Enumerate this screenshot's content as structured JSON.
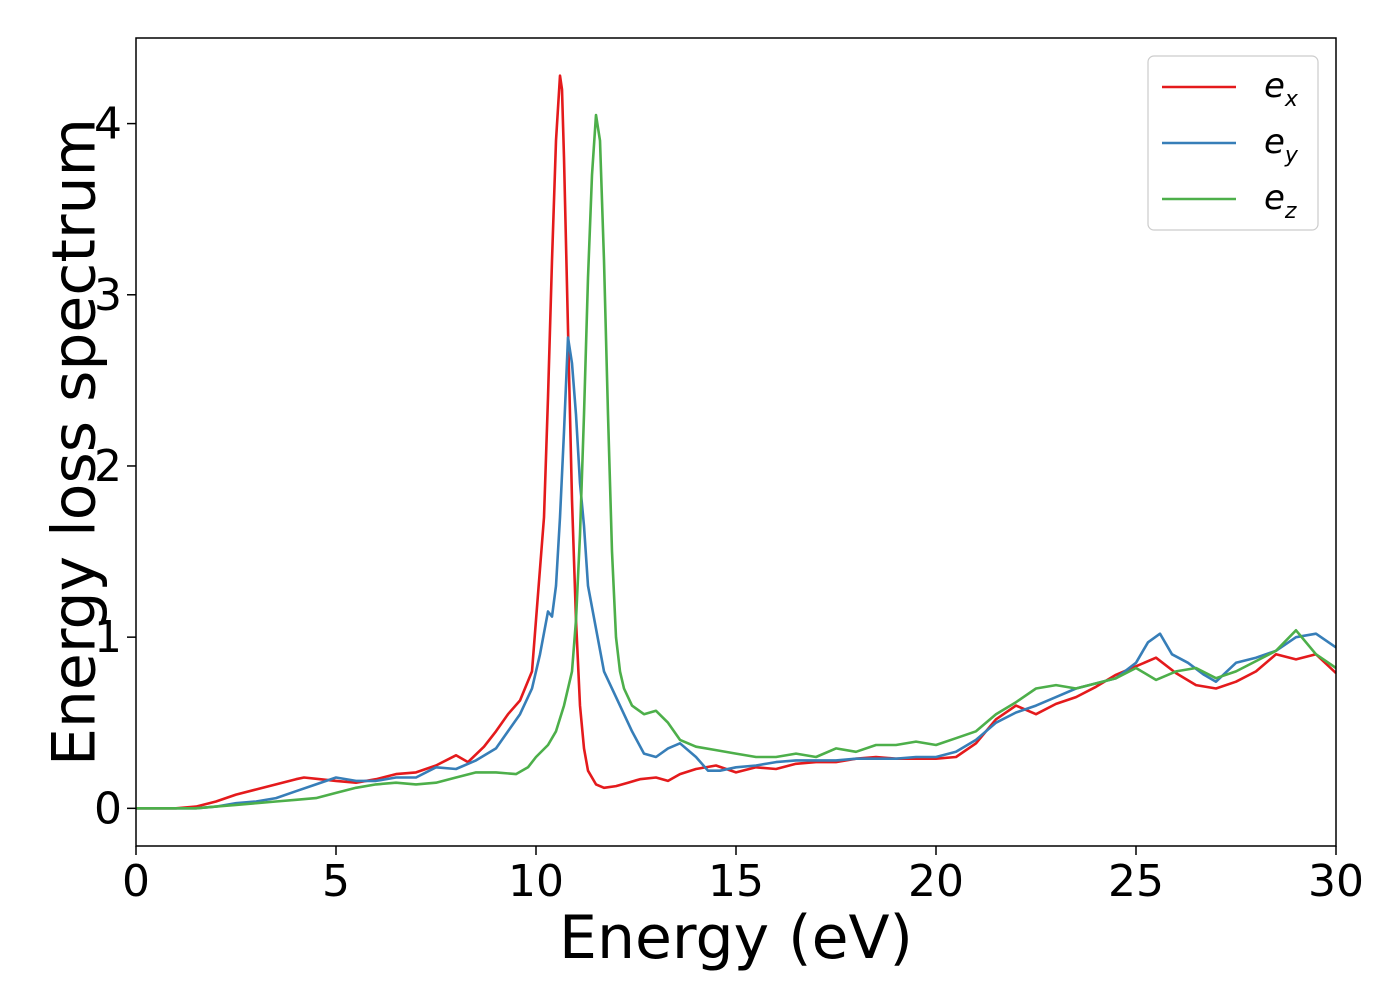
{
  "chart_data": {
    "type": "line",
    "title": "",
    "xlabel": "Energy (eV)",
    "ylabel": "Energy loss spectrum",
    "xlim": [
      0,
      30
    ],
    "ylim": [
      -0.22,
      4.5
    ],
    "xticks": [
      0,
      5,
      10,
      15,
      20,
      25,
      30
    ],
    "yticks": [
      0,
      1,
      2,
      3,
      4
    ],
    "grid": false,
    "legend_position": "top-right",
    "series": [
      {
        "name": "e_x",
        "label_base": "e",
        "label_sub": "x",
        "color": "#e41a1c",
        "x": [
          0,
          1,
          1.5,
          2,
          2.5,
          3,
          3.5,
          4,
          4.2,
          4.6,
          5,
          5.5,
          6,
          6.5,
          7,
          7.5,
          8,
          8.3,
          8.7,
          9,
          9.3,
          9.6,
          9.9,
          10,
          10.1,
          10.2,
          10.3,
          10.4,
          10.5,
          10.6,
          10.65,
          10.7,
          10.8,
          10.9,
          11,
          11.1,
          11.2,
          11.3,
          11.5,
          11.7,
          12,
          12.3,
          12.6,
          13,
          13.3,
          13.6,
          14,
          14.5,
          15,
          15.5,
          16,
          16.5,
          17,
          17.5,
          18,
          18.5,
          19,
          19.5,
          20,
          20.5,
          21,
          21.5,
          22,
          22.5,
          23,
          23.5,
          24,
          24.5,
          25,
          25.5,
          26,
          26.5,
          27,
          27.5,
          28,
          28.5,
          29,
          29.5,
          30
        ],
        "y": [
          0,
          0,
          0.01,
          0.04,
          0.08,
          0.11,
          0.14,
          0.17,
          0.18,
          0.17,
          0.16,
          0.15,
          0.17,
          0.2,
          0.21,
          0.25,
          0.31,
          0.27,
          0.36,
          0.45,
          0.55,
          0.63,
          0.8,
          1.1,
          1.4,
          1.7,
          2.4,
          3.2,
          3.9,
          4.28,
          4.2,
          3.8,
          2.8,
          1.8,
          1.1,
          0.6,
          0.35,
          0.22,
          0.14,
          0.12,
          0.13,
          0.15,
          0.17,
          0.18,
          0.16,
          0.2,
          0.23,
          0.25,
          0.21,
          0.24,
          0.23,
          0.26,
          0.27,
          0.27,
          0.29,
          0.3,
          0.29,
          0.29,
          0.29,
          0.3,
          0.38,
          0.52,
          0.6,
          0.55,
          0.61,
          0.65,
          0.71,
          0.78,
          0.83,
          0.88,
          0.79,
          0.72,
          0.7,
          0.74,
          0.8,
          0.9,
          0.87,
          0.9,
          0.79
        ]
      },
      {
        "name": "e_y",
        "label_base": "e",
        "label_sub": "y",
        "color": "#377eb8",
        "x": [
          0,
          1,
          1.5,
          2,
          2.5,
          3,
          3.5,
          4,
          4.5,
          5,
          5.5,
          6,
          6.5,
          7,
          7.5,
          8,
          8.5,
          9,
          9.3,
          9.6,
          9.9,
          10.1,
          10.3,
          10.4,
          10.5,
          10.6,
          10.7,
          10.8,
          10.9,
          11,
          11.1,
          11.2,
          11.3,
          11.5,
          11.7,
          12,
          12.2,
          12.4,
          12.7,
          13,
          13.3,
          13.6,
          14,
          14.3,
          14.6,
          15,
          15.5,
          16,
          16.5,
          17,
          17.5,
          18,
          18.5,
          19,
          19.5,
          20,
          20.5,
          21,
          21.5,
          22,
          22.5,
          23,
          23.5,
          24,
          24.5,
          25,
          25.3,
          25.6,
          25.9,
          26.3,
          26.7,
          27,
          27.5,
          28,
          28.5,
          29,
          29.5,
          30
        ],
        "y": [
          0,
          0,
          0,
          0.01,
          0.03,
          0.04,
          0.06,
          0.1,
          0.14,
          0.18,
          0.16,
          0.16,
          0.18,
          0.18,
          0.24,
          0.23,
          0.28,
          0.35,
          0.45,
          0.55,
          0.7,
          0.9,
          1.15,
          1.12,
          1.3,
          1.7,
          2.2,
          2.75,
          2.6,
          2.3,
          1.9,
          1.65,
          1.3,
          1.05,
          0.8,
          0.65,
          0.55,
          0.45,
          0.32,
          0.3,
          0.35,
          0.38,
          0.3,
          0.22,
          0.22,
          0.24,
          0.25,
          0.27,
          0.28,
          0.28,
          0.28,
          0.29,
          0.29,
          0.29,
          0.3,
          0.3,
          0.33,
          0.4,
          0.5,
          0.56,
          0.6,
          0.65,
          0.7,
          0.73,
          0.76,
          0.85,
          0.97,
          1.02,
          0.9,
          0.85,
          0.78,
          0.74,
          0.85,
          0.88,
          0.92,
          1.0,
          1.02,
          0.94
        ]
      },
      {
        "name": "e_z",
        "label_base": "e",
        "label_sub": "z",
        "color": "#4daf4a",
        "x": [
          0,
          1,
          1.5,
          2,
          2.5,
          3,
          3.5,
          4,
          4.5,
          5,
          5.5,
          6,
          6.5,
          7,
          7.5,
          8,
          8.5,
          9,
          9.5,
          9.8,
          10,
          10.3,
          10.5,
          10.7,
          10.9,
          11,
          11.1,
          11.2,
          11.3,
          11.4,
          11.5,
          11.6,
          11.7,
          11.8,
          11.9,
          12,
          12.1,
          12.2,
          12.4,
          12.7,
          13,
          13.3,
          13.6,
          14,
          14.5,
          15,
          15.5,
          16,
          16.5,
          17,
          17.5,
          18,
          18.5,
          19,
          19.5,
          20,
          20.5,
          21,
          21.5,
          22,
          22.5,
          23,
          23.5,
          24,
          24.5,
          25,
          25.5,
          26,
          26.5,
          27,
          27.5,
          28,
          28.5,
          29,
          29.5,
          30
        ],
        "y": [
          0,
          0,
          0,
          0.01,
          0.02,
          0.03,
          0.04,
          0.05,
          0.06,
          0.09,
          0.12,
          0.14,
          0.15,
          0.14,
          0.15,
          0.18,
          0.21,
          0.21,
          0.2,
          0.24,
          0.3,
          0.37,
          0.45,
          0.6,
          0.8,
          1.1,
          1.6,
          2.3,
          3.1,
          3.7,
          4.05,
          3.9,
          3.2,
          2.3,
          1.5,
          1.0,
          0.8,
          0.7,
          0.6,
          0.55,
          0.57,
          0.5,
          0.4,
          0.36,
          0.34,
          0.32,
          0.3,
          0.3,
          0.32,
          0.3,
          0.35,
          0.33,
          0.37,
          0.37,
          0.39,
          0.37,
          0.41,
          0.45,
          0.55,
          0.62,
          0.7,
          0.72,
          0.7,
          0.73,
          0.76,
          0.82,
          0.75,
          0.8,
          0.82,
          0.76,
          0.8,
          0.86,
          0.92,
          1.04,
          0.9,
          0.82
        ]
      }
    ]
  }
}
